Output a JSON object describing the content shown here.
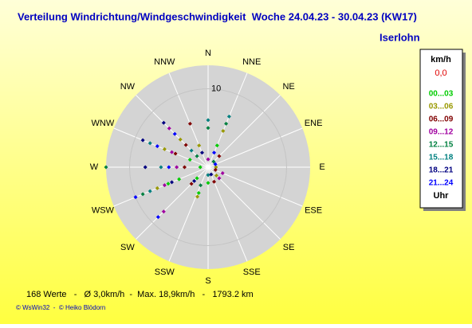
{
  "chart_data": {
    "type": "polar-scatter",
    "title": "Verteilung Windrichtung/Windgeschwindigkeit  Woche 24.04.23 - 30.04.23 (KW17)",
    "subtitle": "Iserlohn",
    "directions": [
      "N",
      "NNE",
      "NE",
      "ENE",
      "E",
      "ESE",
      "SE",
      "SSE",
      "S",
      "SSW",
      "SW",
      "WSW",
      "W",
      "WNW",
      "NW",
      "NNW"
    ],
    "rlim": [
      0,
      13
    ],
    "rticks": [
      10
    ],
    "legend_title": "km/h",
    "calm": "0,0",
    "legend_footer": "Uhr",
    "series": [
      {
        "name": "00...03",
        "color": "#00cc00",
        "dir": [
          247.5,
          247.5,
          225,
          270,
          180,
          200,
          292.5,
          22.5
        ],
        "values": [
          4,
          5.5,
          2,
          1,
          2,
          3.5,
          2.5,
          3
        ]
      },
      {
        "name": "03...06",
        "color": "#999900",
        "dir": [
          315,
          292.5,
          247.5,
          22.5,
          337.5,
          200,
          135,
          90
        ],
        "values": [
          5,
          6,
          7,
          5,
          3,
          4,
          1.5,
          1
        ]
      },
      {
        "name": "06...09",
        "color": "#800000",
        "dir": [
          315,
          292.5,
          270,
          225,
          45,
          110,
          157.5,
          337.5
        ],
        "values": [
          4,
          4.5,
          3,
          3,
          2,
          1,
          2,
          6
        ]
      },
      {
        "name": "09...12",
        "color": "#a000a0",
        "dir": [
          292.5,
          315,
          247.5,
          225,
          135,
          112.5,
          270,
          0
        ],
        "values": [
          5,
          7,
          6,
          8,
          2,
          2,
          4,
          1
        ]
      },
      {
        "name": "12...15",
        "color": "#008040",
        "dir": [
          270,
          247.5,
          22.5,
          315,
          0,
          45,
          202.5
        ],
        "values": [
          13,
          9,
          6,
          2,
          5,
          1,
          2.5
        ]
      },
      {
        "name": "15...18",
        "color": "#008080",
        "dir": [
          0,
          22.5,
          247.5,
          270,
          315,
          292.5,
          180
        ],
        "values": [
          6,
          7,
          8,
          6,
          3,
          8,
          1
        ]
      },
      {
        "name": "18...21",
        "color": "#000080",
        "dir": [
          315,
          292.5,
          270,
          247.5,
          225,
          337.5,
          157.5
        ],
        "values": [
          8,
          9,
          8,
          5,
          2.5,
          2,
          1
        ]
      },
      {
        "name": "21...24",
        "color": "#0000ff",
        "dir": [
          225,
          247.5,
          292.5,
          270,
          315,
          22.5,
          67.5
        ],
        "values": [
          9,
          10,
          7,
          5,
          6,
          2,
          1
        ]
      }
    ],
    "footer": "168 Werte   -   Ø 3,0km/h  -  Max. 18,9km/h   -   1793.2 km",
    "credit": "© WsWin32  -  © Heiko Blödorn"
  }
}
